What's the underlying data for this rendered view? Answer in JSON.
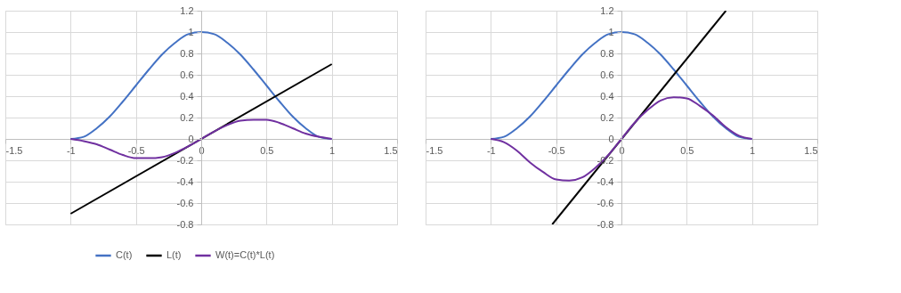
{
  "chart_data": [
    {
      "type": "line",
      "xlim": [
        -1.5,
        1.5
      ],
      "xticks": [
        -1.5,
        -1,
        -0.5,
        0,
        0.5,
        1,
        1.5
      ],
      "ylim": [
        -0.8,
        1.2
      ],
      "yticks": [
        -0.8,
        -0.6,
        -0.4,
        -0.2,
        0,
        0.2,
        0.4,
        0.6,
        0.8,
        1,
        1.2
      ],
      "grid": true,
      "legend": "bottom",
      "series": [
        {
          "name": "C(t)",
          "color": "#4472c4",
          "x": [
            -1,
            -0.9,
            -0.8,
            -0.7,
            -0.6,
            -0.5,
            -0.4,
            -0.3,
            -0.2,
            -0.1,
            0,
            0.1,
            0.2,
            0.3,
            0.4,
            0.5,
            0.6,
            0.7,
            0.8,
            0.9,
            1
          ],
          "values": [
            0,
            0.02,
            0.1,
            0.21,
            0.35,
            0.5,
            0.65,
            0.79,
            0.9,
            0.98,
            1,
            0.98,
            0.9,
            0.79,
            0.65,
            0.5,
            0.35,
            0.21,
            0.1,
            0.02,
            0
          ]
        },
        {
          "name": "L(t)",
          "color": "#000000",
          "x": [
            -1,
            1
          ],
          "values": [
            -0.7,
            0.7
          ]
        },
        {
          "name": "W(t)=C(t)*L(t)",
          "color": "#7030a0",
          "x": [
            -1,
            -0.9,
            -0.8,
            -0.7,
            -0.6,
            -0.5,
            -0.4,
            -0.3,
            -0.2,
            -0.1,
            0,
            0.1,
            0.2,
            0.3,
            0.4,
            0.5,
            0.6,
            0.7,
            0.8,
            0.9,
            1
          ],
          "values": [
            0,
            -0.02,
            -0.05,
            -0.1,
            -0.15,
            -0.18,
            -0.18,
            -0.17,
            -0.13,
            -0.07,
            0,
            0.07,
            0.13,
            0.17,
            0.18,
            0.18,
            0.15,
            0.1,
            0.05,
            0.02,
            0
          ]
        }
      ]
    },
    {
      "type": "line",
      "xlim": [
        -1.5,
        1.5
      ],
      "xticks": [
        -1.5,
        -1,
        -0.5,
        0,
        0.5,
        1,
        1.5
      ],
      "ylim": [
        -0.8,
        1.2
      ],
      "yticks": [
        -0.8,
        -0.6,
        -0.4,
        -0.2,
        0,
        0.2,
        0.4,
        0.6,
        0.8,
        1,
        1.2
      ],
      "grid": true,
      "legend": "bottom",
      "series": [
        {
          "name": "C(t)",
          "color": "#4472c4",
          "x": [
            -1,
            -0.9,
            -0.8,
            -0.7,
            -0.6,
            -0.5,
            -0.4,
            -0.3,
            -0.2,
            -0.1,
            0,
            0.1,
            0.2,
            0.3,
            0.4,
            0.5,
            0.6,
            0.7,
            0.8,
            0.9,
            1
          ],
          "values": [
            0,
            0.02,
            0.1,
            0.21,
            0.35,
            0.5,
            0.65,
            0.79,
            0.9,
            0.98,
            1,
            0.98,
            0.9,
            0.79,
            0.65,
            0.5,
            0.35,
            0.21,
            0.1,
            0.02,
            0
          ]
        },
        {
          "name": "L(t)",
          "color": "#000000",
          "x": [
            -0.53,
            0.8
          ],
          "values": [
            -0.8,
            1.2
          ]
        },
        {
          "name": "W(t)=C(t)*L(t)",
          "color": "#7030a0",
          "x": [
            -1,
            -0.9,
            -0.8,
            -0.7,
            -0.6,
            -0.5,
            -0.4,
            -0.3,
            -0.2,
            -0.1,
            0,
            0.1,
            0.2,
            0.3,
            0.4,
            0.5,
            0.6,
            0.7,
            0.8,
            0.9,
            1
          ],
          "values": [
            0,
            -0.03,
            -0.11,
            -0.22,
            -0.31,
            -0.38,
            -0.39,
            -0.36,
            -0.27,
            -0.15,
            0,
            0.15,
            0.27,
            0.36,
            0.39,
            0.38,
            0.31,
            0.22,
            0.11,
            0.03,
            0
          ]
        }
      ]
    }
  ]
}
